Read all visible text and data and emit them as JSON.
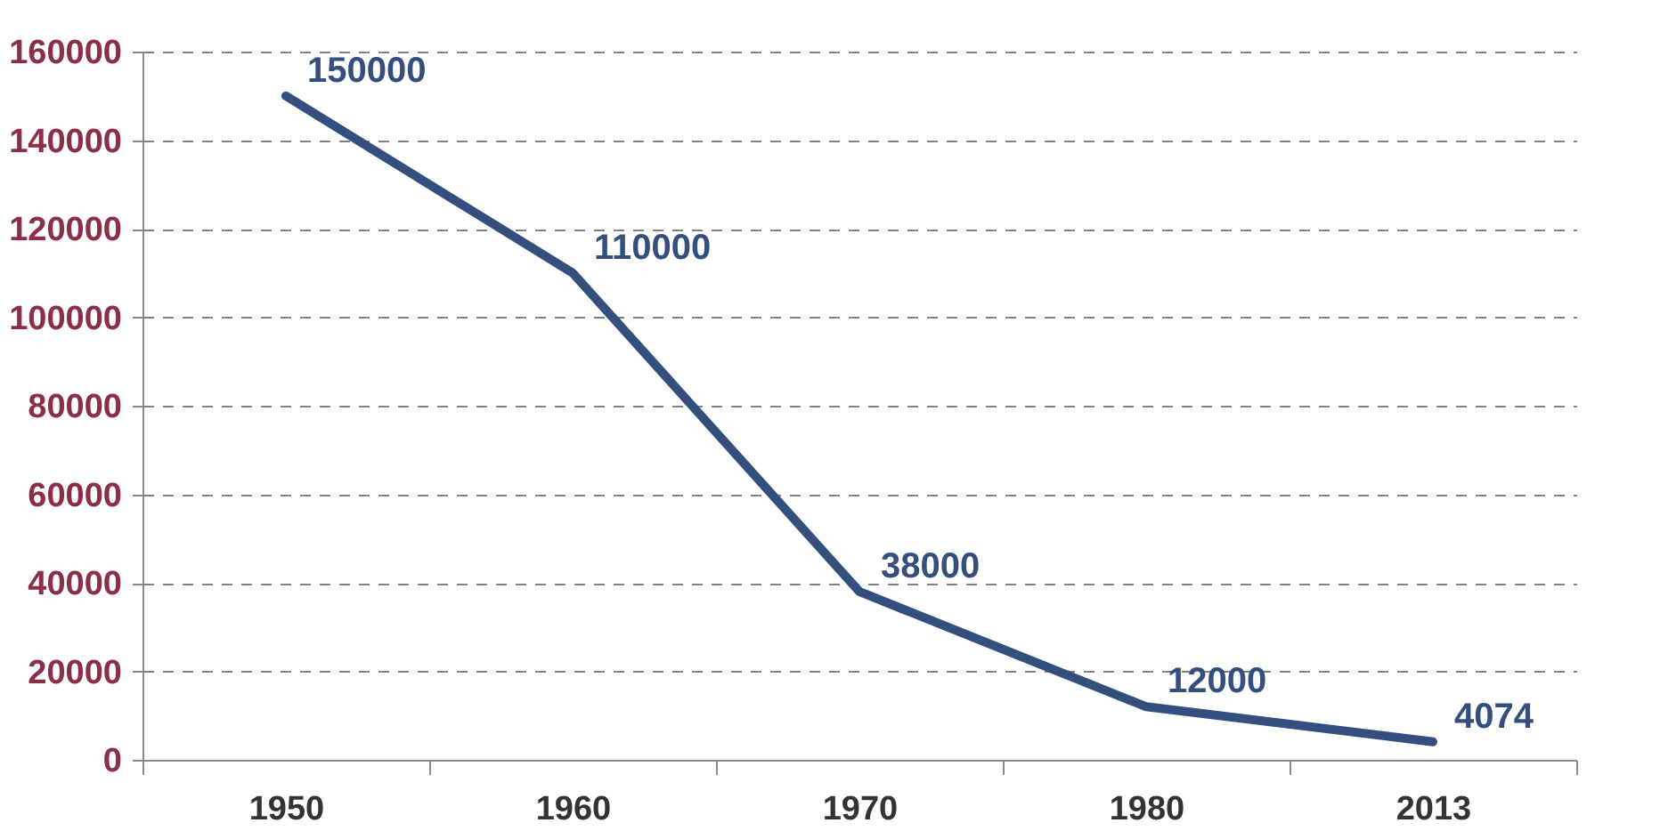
{
  "chart_data": {
    "type": "line",
    "categories": [
      "1950",
      "1960",
      "1970",
      "1980",
      "2013"
    ],
    "series": [
      {
        "color": "#344e7e",
        "values": [
          150000,
          110000,
          38000,
          12000,
          4074
        ]
      }
    ],
    "ylim": [
      0,
      160000
    ],
    "yticks": [
      0,
      20000,
      40000,
      60000,
      80000,
      100000,
      120000,
      140000,
      160000
    ],
    "grid": "y",
    "data_labels": true,
    "marker": "none",
    "line_style": "solid"
  }
}
